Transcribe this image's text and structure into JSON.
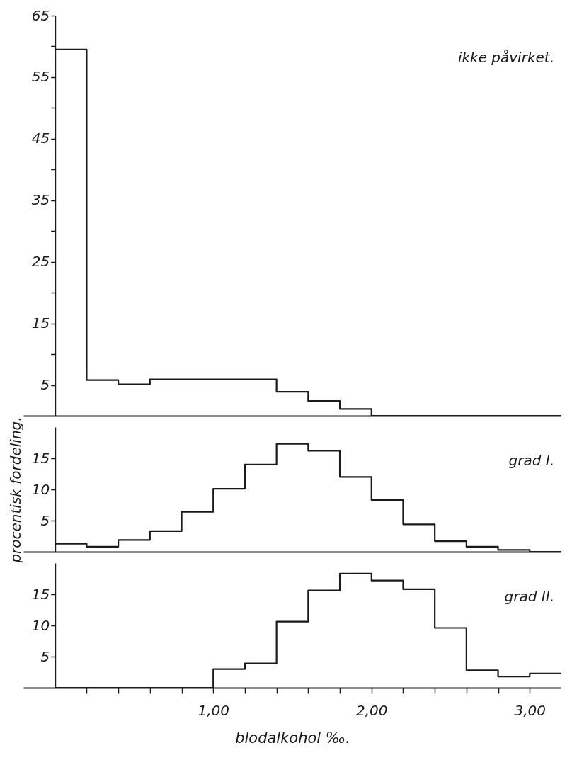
{
  "chart_data": [
    {
      "type": "histogram",
      "color": "#1a1a1a",
      "bins": [
        0,
        0.2,
        0.4,
        0.6,
        0.8,
        1.0,
        1.2,
        1.4,
        1.6,
        1.8,
        2.0,
        2.2,
        2.4,
        2.6,
        2.8,
        3.0,
        3.2
      ],
      "values": [
        59.5,
        5.8,
        5.1,
        5.9,
        5.9,
        5.9,
        5.9,
        3.9,
        2.4,
        1.1,
        0,
        0,
        0,
        0,
        0,
        0
      ],
      "xlim": [
        -0.2,
        3.2
      ],
      "ylim": [
        0,
        65
      ],
      "yticks": [
        5,
        {
          "value": 10,
          "label": null
        },
        15,
        {
          "value": 20,
          "label": null
        },
        25,
        {
          "value": 30,
          "label": null
        },
        35,
        {
          "value": 40,
          "label": null
        },
        45,
        {
          "value": 50,
          "label": null
        },
        55,
        {
          "value": 60,
          "label": null
        },
        65
      ],
      "tick_labels": "y",
      "annotations": [
        "ikke påvirket."
      ]
    },
    {
      "type": "histogram",
      "color": "#1a1a1a",
      "ylabel": "procentisk fordeling.",
      "bins": [
        0,
        0.2,
        0.4,
        0.6,
        0.8,
        1.0,
        1.2,
        1.4,
        1.6,
        1.8,
        2.0,
        2.2,
        2.4,
        2.6,
        2.8,
        3.0,
        3.2
      ],
      "values": [
        1.3,
        0.8,
        1.9,
        3.3,
        6.4,
        10.1,
        14.0,
        17.3,
        16.2,
        12.0,
        8.3,
        4.4,
        1.7,
        0.8,
        0.3,
        0
      ],
      "xlim": [
        -0.2,
        3.2
      ],
      "ylim": [
        0,
        20
      ],
      "yticks": [
        5,
        10,
        15
      ],
      "tick_labels": "y",
      "annotations": [
        "grad I."
      ]
    },
    {
      "type": "histogram",
      "color": "#1a1a1a",
      "xlabel": "blodalkohol ‰.",
      "bins": [
        0,
        0.2,
        0.4,
        0.6,
        0.8,
        1.0,
        1.2,
        1.4,
        1.6,
        1.8,
        2.0,
        2.2,
        2.4,
        2.6,
        2.8,
        3.0,
        3.2
      ],
      "values": [
        0,
        0,
        0,
        0,
        0,
        3.0,
        3.9,
        10.6,
        15.6,
        18.3,
        17.2,
        15.8,
        9.6,
        2.8,
        1.8,
        2.3
      ],
      "xlim": [
        -0.2,
        3.2
      ],
      "xticks": [
        {
          "value": 0.2,
          "label": null
        },
        {
          "value": 0.4,
          "label": null
        },
        {
          "value": 0.6,
          "label": null
        },
        {
          "value": 0.8,
          "label": null
        },
        {
          "value": 1.0,
          "label": "1,00"
        },
        {
          "value": 1.2,
          "label": null
        },
        {
          "value": 1.4,
          "label": null
        },
        {
          "value": 1.6,
          "label": null
        },
        {
          "value": 1.8,
          "label": null
        },
        {
          "value": 2.0,
          "label": "2,00"
        },
        {
          "value": 2.2,
          "label": null
        },
        {
          "value": 2.4,
          "label": null
        },
        {
          "value": 2.6,
          "label": null
        },
        {
          "value": 2.8,
          "label": null
        },
        {
          "value": 3.0,
          "label": "3,00"
        }
      ],
      "ylim": [
        0,
        20
      ],
      "yticks": [
        5,
        10,
        15
      ],
      "annotations": [
        "grad II."
      ]
    }
  ]
}
